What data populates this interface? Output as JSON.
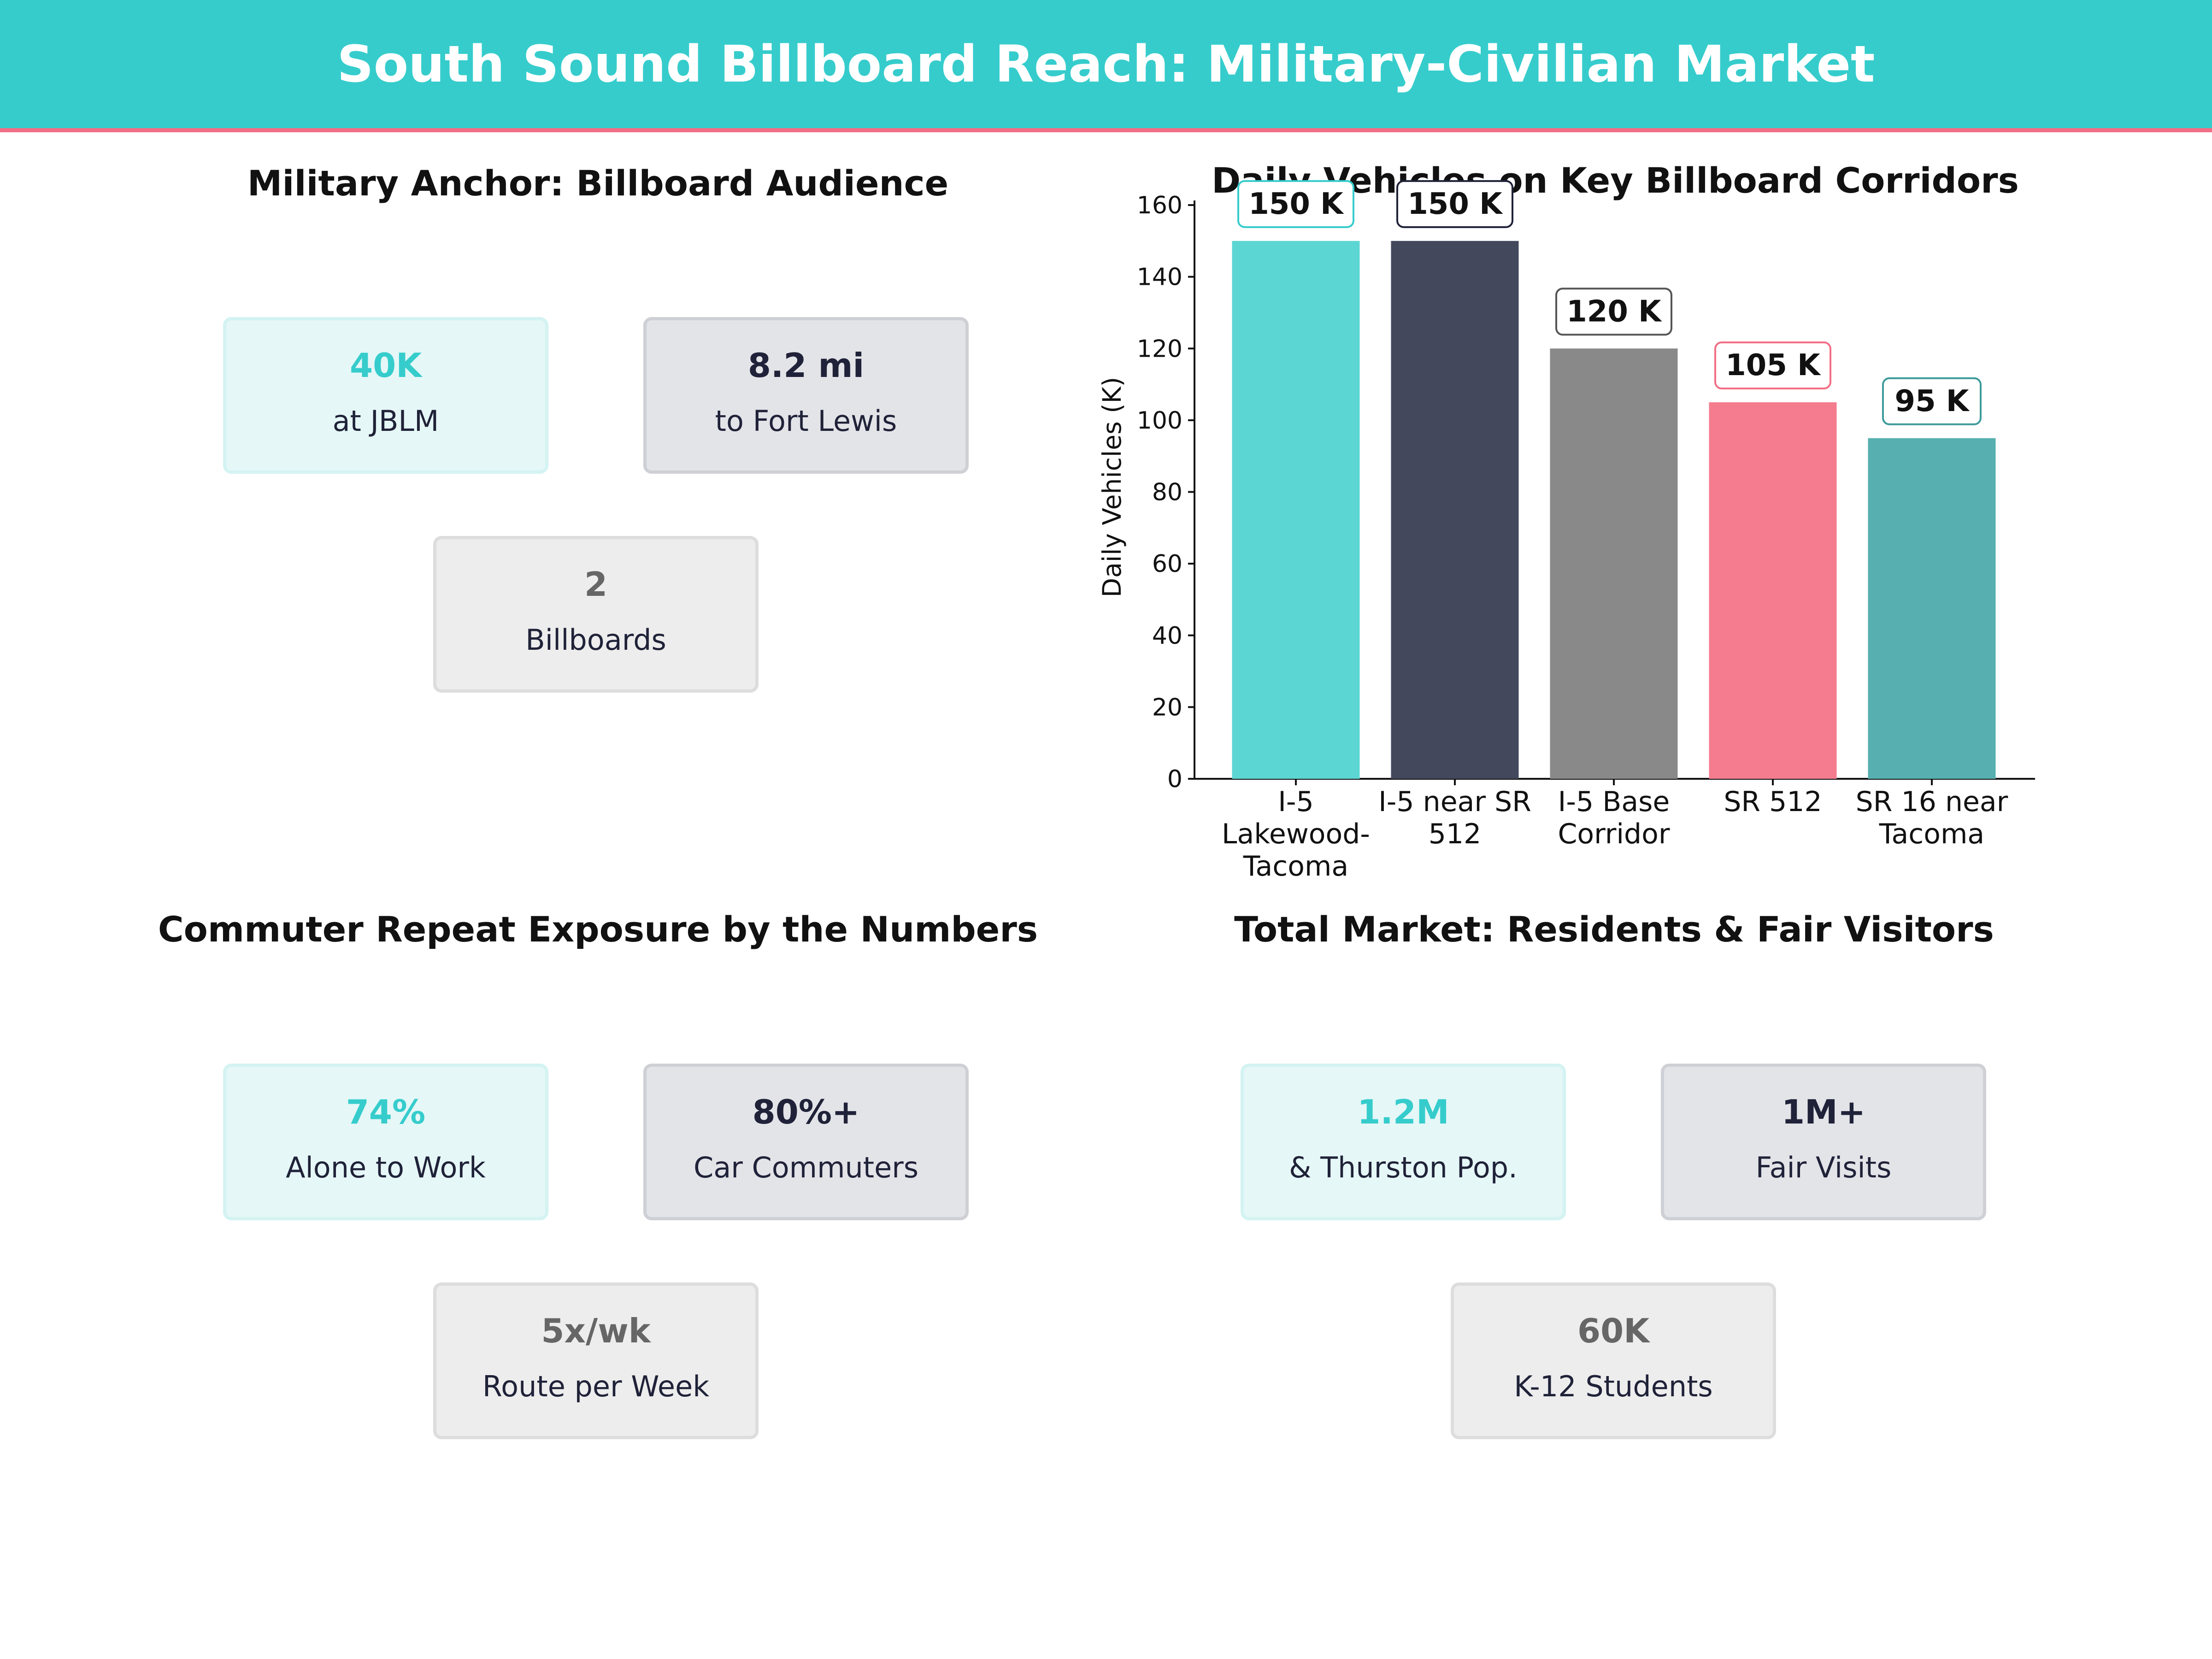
{
  "banner": {
    "title": "South Sound Billboard Reach: Military-Civilian Market"
  },
  "panels": {
    "military": {
      "title": "Military Anchor: Billboard Audience",
      "cards": [
        {
          "value": "40K",
          "label": "at JBLM"
        },
        {
          "value": "8.2 mi",
          "label": "to Fort Lewis"
        },
        {
          "value": "2",
          "label": "Billboards"
        }
      ]
    },
    "commuter": {
      "title": "Commuter Repeat Exposure by the Numbers",
      "cards": [
        {
          "value": "74%",
          "label": "Alone to Work"
        },
        {
          "value": "80%+",
          "label": "Car Commuters"
        },
        {
          "value": "5x/wk",
          "label": "Route per Week"
        }
      ]
    },
    "market": {
      "title": "Total Market: Residents & Fair Visitors",
      "cards": [
        {
          "value": "1.2M",
          "label": "& Thurston Pop."
        },
        {
          "value": "1M+",
          "label": "Fair Visits"
        },
        {
          "value": "60K",
          "label": "K-12 Students"
        }
      ]
    }
  },
  "chart_data": {
    "type": "bar",
    "title": "Daily Vehicles on Key Billboard Corridors",
    "xlabel": "",
    "ylabel": "Daily Vehicles (K)",
    "ylim": [
      0,
      160
    ],
    "yticks": [
      0,
      20,
      40,
      60,
      80,
      100,
      120,
      140,
      160
    ],
    "grid": false,
    "categories": [
      [
        "I-5",
        "Lakewood-",
        "Tacoma"
      ],
      [
        "I-5 near SR",
        "512"
      ],
      [
        "I-5 Base",
        "Corridor"
      ],
      [
        "SR 512"
      ],
      [
        "SR 16 near",
        "Tacoma"
      ]
    ],
    "values": [
      150,
      150,
      120,
      105,
      95
    ],
    "value_labels": [
      "150 K",
      "150 K",
      "120 K",
      "105 K",
      "95 K"
    ],
    "colors": [
      "#5CD6D3",
      "#44485D",
      "#898989",
      "#F47C8E",
      "#57AFAF"
    ],
    "label_border_colors": [
      "#36CCCC",
      "#1F2238",
      "#555555",
      "#F26E85",
      "#3E9A9A"
    ]
  }
}
